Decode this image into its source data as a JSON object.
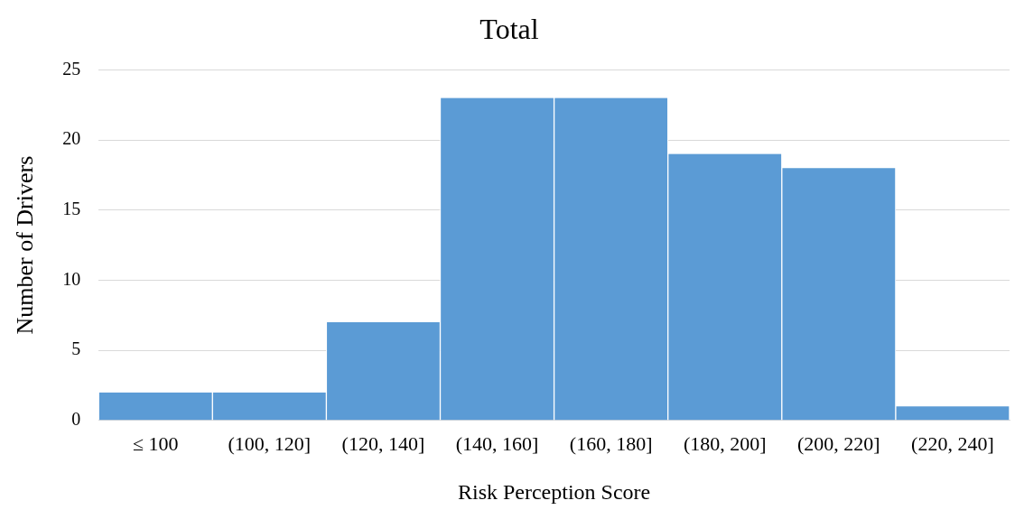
{
  "chart_data": {
    "type": "bar",
    "title": "Total",
    "xlabel": "Risk Perception Score",
    "ylabel": "Number of Drivers",
    "categories": [
      "≤ 100",
      "(100, 120]",
      "(120, 140]",
      "(140, 160]",
      "(160, 180]",
      "(180, 200]",
      "(200, 220]",
      "(220, 240]"
    ],
    "values": [
      2,
      2,
      7,
      23,
      23,
      19,
      18,
      1
    ],
    "color": "#5b9bd5",
    "ylim": [
      0,
      25
    ],
    "yticks": [
      0,
      5,
      10,
      15,
      20,
      25
    ],
    "grid": "y"
  }
}
